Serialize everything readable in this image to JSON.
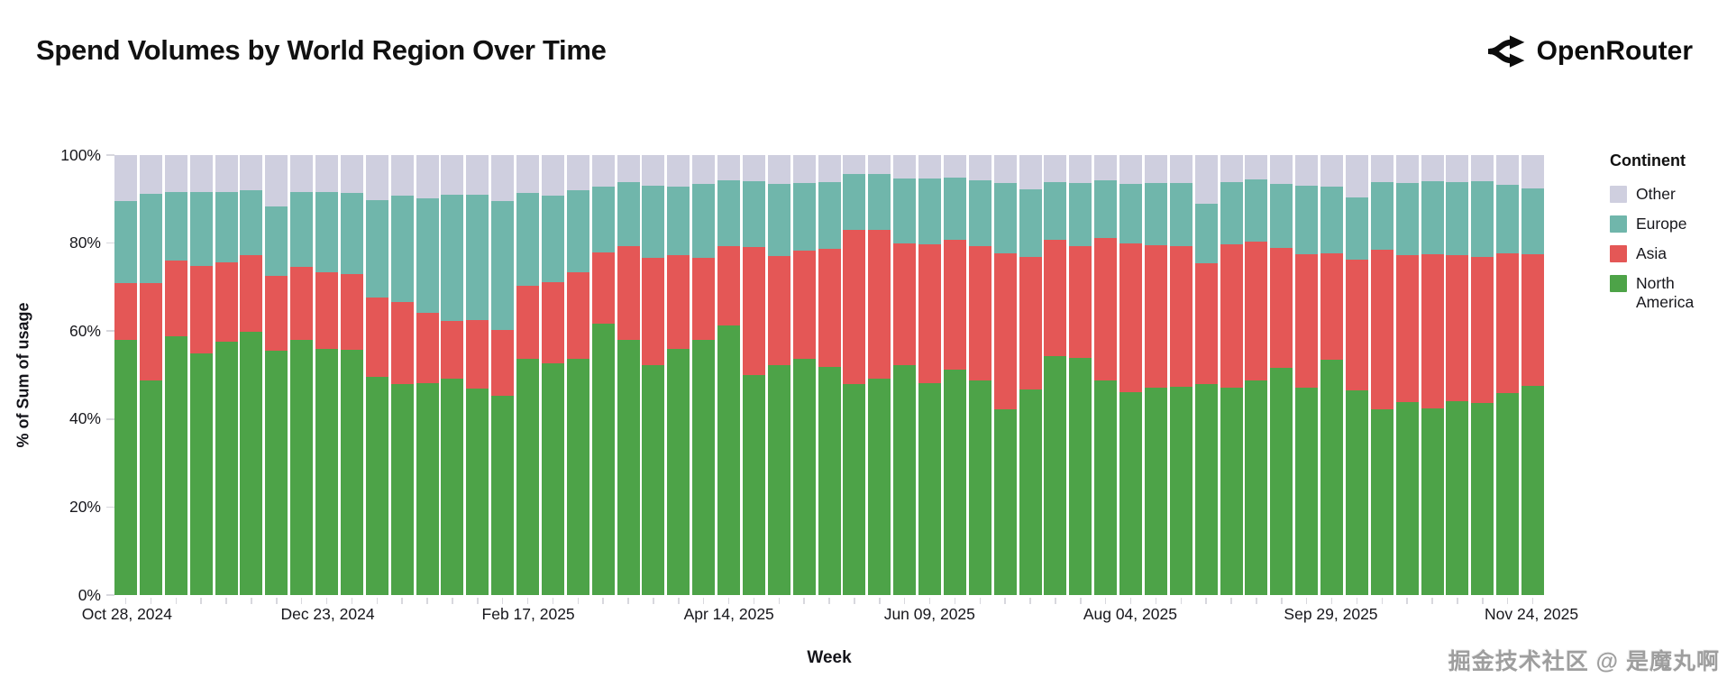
{
  "header": {
    "title": "Spend Volumes by World Region Over Time",
    "brand": "OpenRouter"
  },
  "watermark": "掘金技术社区 @ 是魔丸啊",
  "chart_data": {
    "type": "bar",
    "stacked": true,
    "normalized": true,
    "title": "Spend Volumes by World Region Over Time",
    "xlabel": "Week",
    "ylabel": "% of Sum of usage",
    "ylim": [
      0,
      100
    ],
    "grid": false,
    "y_tick_labels": [
      "0%",
      "20%",
      "40%",
      "60%",
      "80%",
      "100%"
    ],
    "x_tick_labels": [
      "Oct 28, 2024",
      "Dec 23, 2024",
      "Feb 17, 2025",
      "Apr 14, 2025",
      "Jun 09, 2025",
      "Aug 04, 2025",
      "Sep 29, 2025",
      "Nov 24, 2025"
    ],
    "x_tick_bar_indices": [
      0,
      8,
      16,
      24,
      32,
      40,
      48,
      56
    ],
    "legend": {
      "title": "Continent",
      "position": "right",
      "entries": [
        {
          "label": "Other",
          "color": "#cfcfdf"
        },
        {
          "label": "Europe",
          "color": "#70b6ab"
        },
        {
          "label": "Asia",
          "color": "#e45756"
        },
        {
          "label": "North America",
          "color": "#4da348"
        }
      ]
    },
    "categories": [
      "Oct 28, 2024",
      "Nov 04, 2024",
      "Nov 11, 2024",
      "Nov 18, 2024",
      "Nov 25, 2024",
      "Dec 02, 2024",
      "Dec 09, 2024",
      "Dec 16, 2024",
      "Dec 23, 2024",
      "Dec 30, 2024",
      "Jan 06, 2025",
      "Jan 13, 2025",
      "Jan 20, 2025",
      "Jan 27, 2025",
      "Feb 03, 2025",
      "Feb 10, 2025",
      "Feb 17, 2025",
      "Feb 24, 2025",
      "Mar 03, 2025",
      "Mar 10, 2025",
      "Mar 17, 2025",
      "Mar 24, 2025",
      "Mar 31, 2025",
      "Apr 07, 2025",
      "Apr 14, 2025",
      "Apr 21, 2025",
      "Apr 28, 2025",
      "May 05, 2025",
      "May 12, 2025",
      "May 19, 2025",
      "May 26, 2025",
      "Jun 02, 2025",
      "Jun 09, 2025",
      "Jun 16, 2025",
      "Jun 23, 2025",
      "Jun 30, 2025",
      "Jul 07, 2025",
      "Jul 14, 2025",
      "Jul 21, 2025",
      "Jul 28, 2025",
      "Aug 04, 2025",
      "Aug 11, 2025",
      "Aug 18, 2025",
      "Aug 25, 2025",
      "Sep 01, 2025",
      "Sep 08, 2025",
      "Sep 15, 2025",
      "Sep 22, 2025",
      "Sep 29, 2025",
      "Oct 06, 2025",
      "Oct 13, 2025",
      "Oct 20, 2025",
      "Oct 27, 2025",
      "Nov 03, 2025",
      "Nov 10, 2025",
      "Nov 17, 2025",
      "Nov 24, 2025"
    ],
    "series": [
      {
        "name": "North America",
        "color": "#4da348",
        "values": [
          58.0,
          48.8,
          58.8,
          55.0,
          57.6,
          59.8,
          55.5,
          58.0,
          55.9,
          55.7,
          49.5,
          48.0,
          48.2,
          49.2,
          47.0,
          45.3,
          53.6,
          52.7,
          53.6,
          61.7,
          57.9,
          52.3,
          56.0,
          57.9,
          61.3,
          50.0,
          52.3,
          53.7,
          51.9,
          48.0,
          49.2,
          52.3,
          48.2,
          51.2,
          48.7,
          42.3,
          46.8,
          54.3,
          53.8,
          48.7,
          46.2,
          47.1,
          47.3,
          48.0,
          47.2,
          48.7,
          51.6,
          47.1,
          53.4,
          46.5,
          42.3,
          43.9,
          42.5,
          44.0,
          43.7,
          45.9,
          47.6
        ]
      },
      {
        "name": "Asia",
        "color": "#e45756",
        "values": [
          13.0,
          22.1,
          17.2,
          19.8,
          18.1,
          17.4,
          17.0,
          16.6,
          17.5,
          17.3,
          18.1,
          18.7,
          15.9,
          13.1,
          15.6,
          14.9,
          16.6,
          18.5,
          19.7,
          16.2,
          21.5,
          24.4,
          21.3,
          18.8,
          18.0,
          29.0,
          24.7,
          24.5,
          26.7,
          35.0,
          33.7,
          27.6,
          31.6,
          29.6,
          30.6,
          35.4,
          30.0,
          26.4,
          25.6,
          32.4,
          33.7,
          32.5,
          32.0,
          27.5,
          32.6,
          31.7,
          27.4,
          30.4,
          24.3,
          29.8,
          36.2,
          33.3,
          35.0,
          33.3,
          33.2,
          31.7,
          29.9
        ]
      },
      {
        "name": "Europe",
        "color": "#70b6ab",
        "values": [
          18.5,
          20.3,
          15.6,
          16.8,
          15.9,
          14.8,
          15.8,
          17.0,
          18.2,
          18.4,
          22.1,
          24.0,
          26.1,
          28.7,
          28.4,
          29.3,
          21.2,
          19.5,
          18.8,
          15.0,
          14.4,
          16.4,
          15.6,
          16.7,
          15.0,
          15.0,
          16.5,
          15.4,
          15.3,
          12.6,
          12.7,
          14.8,
          14.9,
          14.0,
          15.0,
          16.0,
          15.4,
          13.2,
          14.3,
          13.1,
          13.6,
          14.1,
          14.4,
          13.4,
          14.1,
          14.0,
          14.5,
          15.6,
          15.2,
          14.1,
          15.4,
          16.5,
          16.5,
          16.5,
          17.1,
          15.7,
          15.0
        ]
      },
      {
        "name": "Other",
        "color": "#cfcfdf",
        "values": [
          10.5,
          8.8,
          8.4,
          8.4,
          8.4,
          8.0,
          11.7,
          8.4,
          8.4,
          8.6,
          10.3,
          9.3,
          9.8,
          9.0,
          9.0,
          10.5,
          8.6,
          9.3,
          7.9,
          7.1,
          6.2,
          6.9,
          7.1,
          6.6,
          5.7,
          6.0,
          6.5,
          6.4,
          6.1,
          4.4,
          4.4,
          5.3,
          5.3,
          5.2,
          5.7,
          6.3,
          7.8,
          6.1,
          6.3,
          5.8,
          6.5,
          6.3,
          6.3,
          11.1,
          6.1,
          5.6,
          6.5,
          6.9,
          7.1,
          9.6,
          6.1,
          6.3,
          6.0,
          6.2,
          6.0,
          6.7,
          7.5
        ]
      }
    ]
  }
}
